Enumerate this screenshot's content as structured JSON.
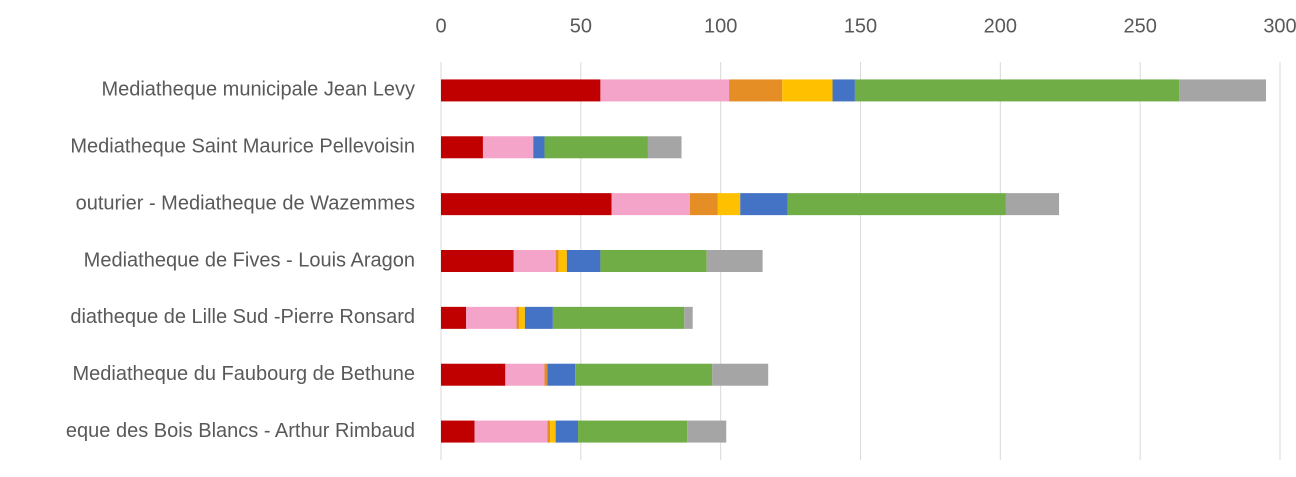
{
  "chart_data": {
    "type": "stacked-bar-horizontal",
    "categories": [
      "Mediatheque municipale Jean Levy",
      "Mediatheque Saint Maurice Pellevoisin",
      "outurier - Mediatheque de Wazemmes",
      "Mediatheque de Fives - Louis Aragon",
      "diatheque de Lille Sud -Pierre Ronsard",
      "Mediatheque du Faubourg de Bethune",
      "eque des Bois Blancs - Arthur Rimbaud"
    ],
    "series": [
      {
        "color": "#c00000",
        "values": [
          57,
          15,
          61,
          26,
          9,
          23,
          12
        ]
      },
      {
        "color": "#f4a3c9",
        "values": [
          46,
          18,
          28,
          15,
          18,
          14,
          26
        ]
      },
      {
        "color": "#e58e26",
        "values": [
          19,
          0,
          10,
          1,
          1,
          1,
          1
        ]
      },
      {
        "color": "#ffc000",
        "values": [
          18,
          0,
          8,
          3,
          2,
          0,
          2
        ]
      },
      {
        "color": "#4472c4",
        "values": [
          8,
          4,
          17,
          12,
          10,
          10,
          8
        ]
      },
      {
        "color": "#70ad47",
        "values": [
          116,
          37,
          78,
          38,
          47,
          49,
          39
        ]
      },
      {
        "color": "#a5a5a5",
        "values": [
          31,
          12,
          19,
          20,
          3,
          20,
          14
        ]
      }
    ],
    "xlim": [
      0,
      300
    ],
    "xticks": [
      0,
      50,
      100,
      150,
      200,
      250,
      300
    ],
    "grid": true
  }
}
